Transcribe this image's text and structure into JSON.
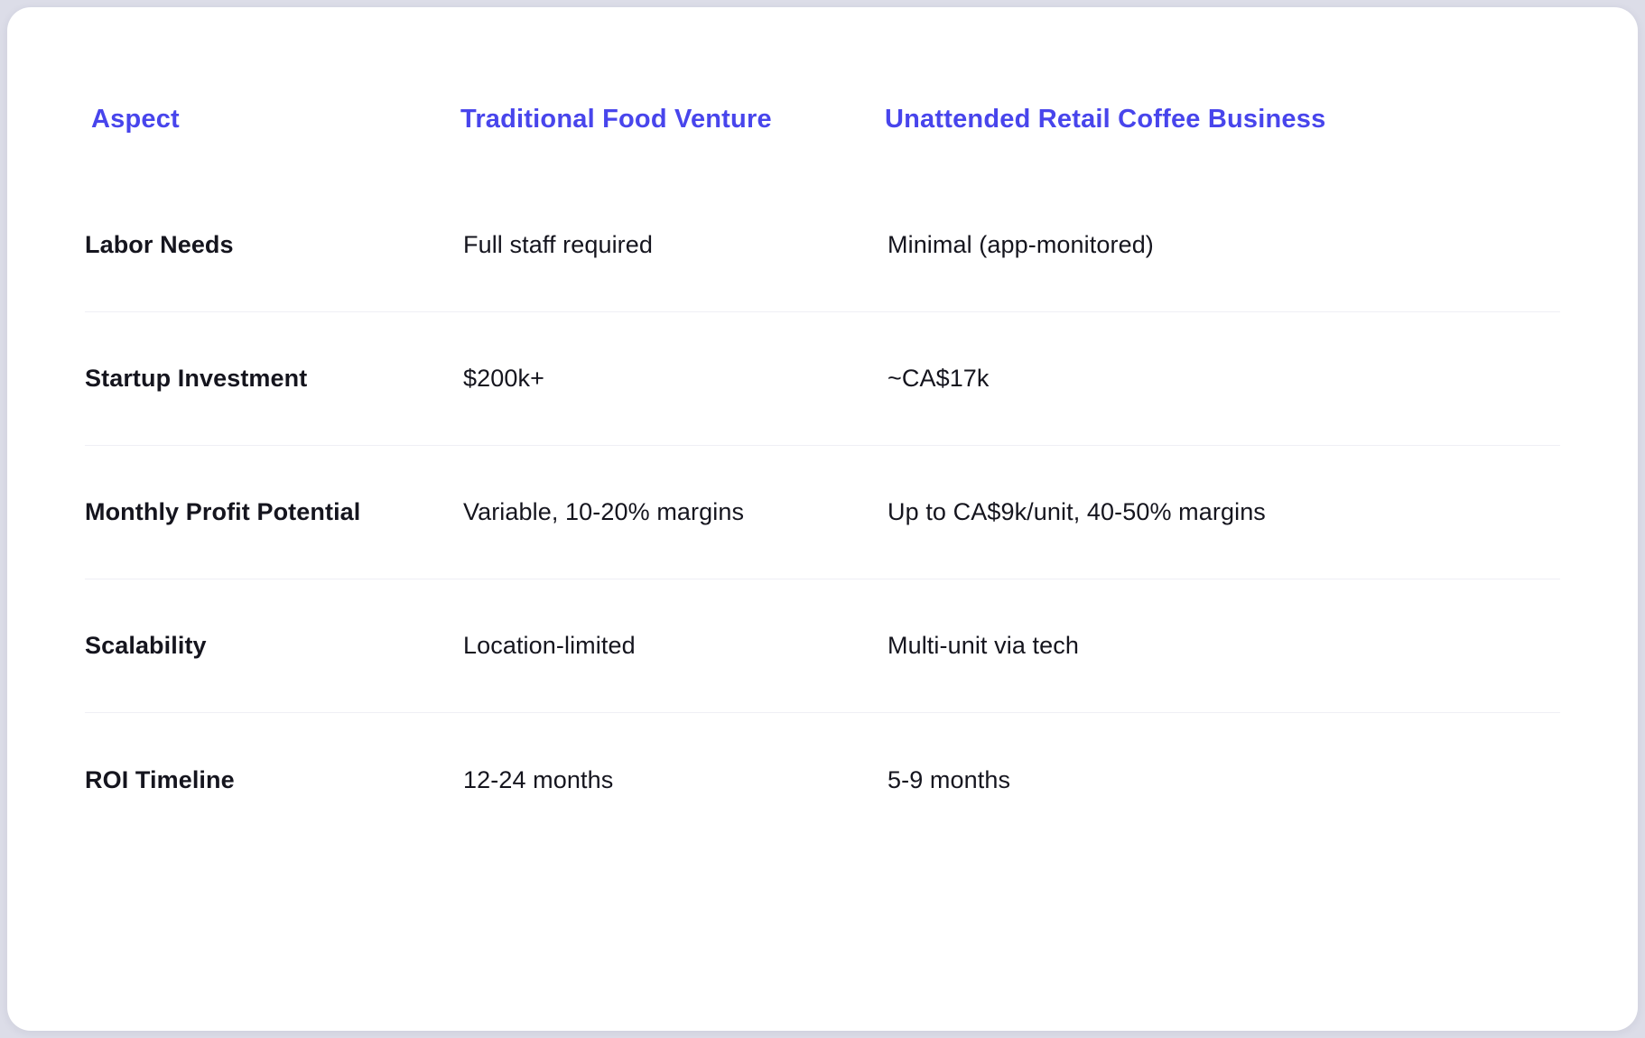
{
  "colors": {
    "header_text": "#4845ec",
    "body_text": "#15151e",
    "card_background": "#ffffff",
    "divider": "#efeff5"
  },
  "table": {
    "columns": [
      "Aspect",
      "Traditional Food Venture",
      "Unattended Retail Coffee Business"
    ],
    "rows": [
      {
        "aspect": "Labor Needs",
        "traditional": "Full staff required",
        "coffee": "Minimal (app-monitored)"
      },
      {
        "aspect": "Startup Investment",
        "traditional": "$200k+",
        "coffee": "~CA$17k"
      },
      {
        "aspect": "Monthly Profit Potential",
        "traditional": "Variable, 10-20% margins",
        "coffee": "Up to CA$9k/unit, 40-50% margins"
      },
      {
        "aspect": "Scalability",
        "traditional": "Location-limited",
        "coffee": "Multi-unit via tech"
      },
      {
        "aspect": "ROI Timeline",
        "traditional": "12-24 months",
        "coffee": "5-9 months"
      }
    ]
  }
}
